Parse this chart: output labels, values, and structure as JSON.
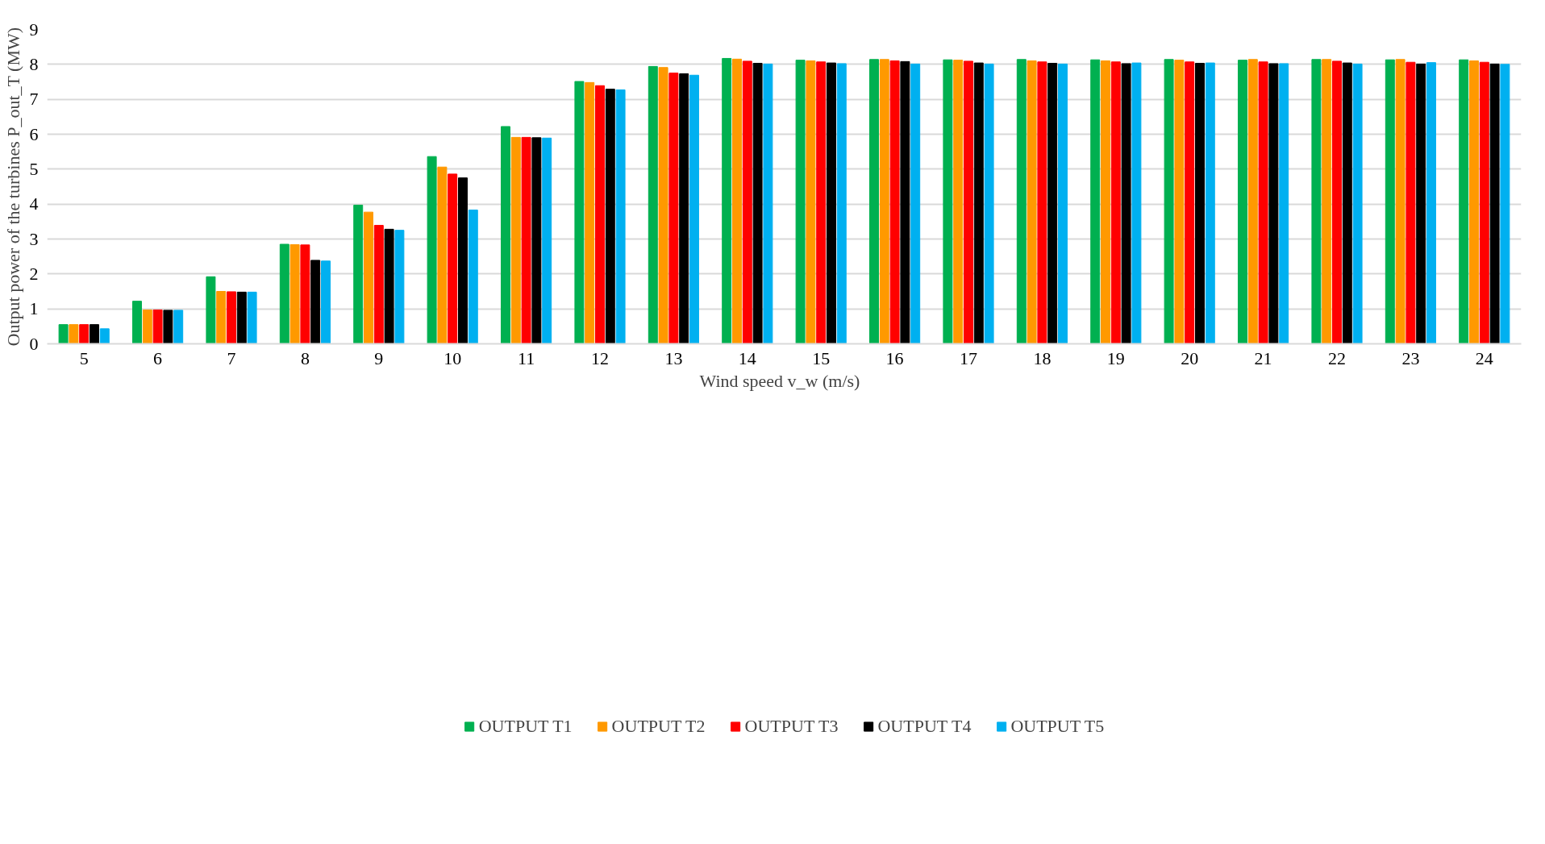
{
  "chart_data": {
    "type": "bar",
    "xlabel": "Wind speed  v_w  (m/s)",
    "ylabel": "Output power of the turbines P_out_T (MW)",
    "categories": [
      "5",
      "6",
      "7",
      "8",
      "9",
      "10",
      "11",
      "12",
      "13",
      "14",
      "15",
      "16",
      "17",
      "18",
      "19",
      "20",
      "21",
      "22",
      "23",
      "24"
    ],
    "series": [
      {
        "name": "OUTPUT T1",
        "color": "#00b050",
        "values": [
          0.55,
          1.22,
          1.92,
          2.85,
          3.97,
          5.36,
          6.22,
          7.51,
          7.94,
          8.17,
          8.12,
          8.14,
          8.13,
          8.14,
          8.13,
          8.14,
          8.12,
          8.14,
          8.13,
          8.13
        ]
      },
      {
        "name": "OUTPUT T2",
        "color": "#ff9900",
        "values": [
          0.55,
          0.97,
          1.5,
          2.84,
          3.77,
          5.06,
          5.91,
          7.48,
          7.91,
          8.15,
          8.1,
          8.14,
          8.12,
          8.1,
          8.1,
          8.12,
          8.14,
          8.14,
          8.14,
          8.1
        ]
      },
      {
        "name": "OUTPUT T3",
        "color": "#ff0000",
        "values": [
          0.55,
          0.97,
          1.49,
          2.83,
          3.39,
          4.86,
          5.91,
          7.39,
          7.75,
          8.09,
          8.07,
          8.1,
          8.09,
          8.07,
          8.07,
          8.07,
          8.07,
          8.09,
          8.06,
          8.06
        ]
      },
      {
        "name": "OUTPUT T4",
        "color": "#000000",
        "values": [
          0.55,
          0.96,
          1.48,
          2.39,
          3.28,
          4.75,
          5.9,
          7.29,
          7.73,
          8.03,
          8.04,
          8.08,
          8.04,
          8.03,
          8.02,
          8.03,
          8.02,
          8.04,
          8.01,
          8.01
        ]
      },
      {
        "name": "OUTPUT T5",
        "color": "#00b0f0",
        "values": [
          0.43,
          0.96,
          1.48,
          2.37,
          3.25,
          3.83,
          5.89,
          7.27,
          7.69,
          8.01,
          8.02,
          8.01,
          8.01,
          8.01,
          8.04,
          8.04,
          8.02,
          8.01,
          8.05,
          8.0
        ]
      }
    ],
    "ylim": [
      0,
      9
    ],
    "yticks": [
      0,
      1,
      2,
      3,
      4,
      5,
      6,
      7,
      8,
      9
    ],
    "grid": "y",
    "legend": "bottom"
  }
}
